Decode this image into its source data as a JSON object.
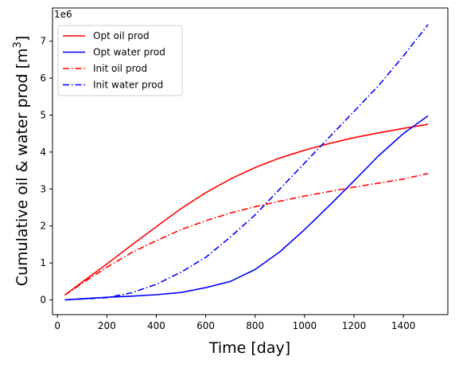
{
  "chart_data": {
    "type": "line",
    "title": "",
    "xlabel": "Time [day]",
    "ylabel_main": "Cumulative oil & water prod [m",
    "ylabel_sup": "3",
    "ylabel_end": "]",
    "y_offset_text": "1e6",
    "xlim": [
      -20,
      1580
    ],
    "ylim": [
      -0.4,
      7.9
    ],
    "x_ticks": [
      0,
      200,
      400,
      600,
      800,
      1000,
      1200,
      1400
    ],
    "y_ticks": [
      0,
      1,
      2,
      3,
      4,
      5,
      6,
      7
    ],
    "grid": false,
    "legend_position": "top-left",
    "x": [
      30,
      100,
      200,
      300,
      400,
      500,
      600,
      700,
      800,
      900,
      1000,
      1100,
      1200,
      1300,
      1400,
      1500
    ],
    "series": [
      {
        "name": "Opt oil prod",
        "color": "#ff0000",
        "dash": "solid",
        "values": [
          0.13,
          0.48,
          0.97,
          1.48,
          1.98,
          2.47,
          2.9,
          3.27,
          3.58,
          3.84,
          4.05,
          4.23,
          4.39,
          4.52,
          4.64,
          4.75
        ]
      },
      {
        "name": "Opt water prod",
        "color": "#0000ff",
        "dash": "solid",
        "values": [
          0.0,
          0.03,
          0.07,
          0.1,
          0.14,
          0.2,
          0.33,
          0.5,
          0.82,
          1.3,
          1.9,
          2.55,
          3.22,
          3.9,
          4.5,
          4.98
        ]
      },
      {
        "name": "Init oil prod",
        "color": "#ff0000",
        "dash": "dashdot",
        "values": [
          0.13,
          0.45,
          0.88,
          1.28,
          1.6,
          1.9,
          2.14,
          2.35,
          2.52,
          2.67,
          2.81,
          2.93,
          3.05,
          3.16,
          3.27,
          3.42
        ]
      },
      {
        "name": "Init water prod",
        "color": "#0000ff",
        "dash": "dashdot",
        "values": [
          0.0,
          0.02,
          0.06,
          0.19,
          0.42,
          0.75,
          1.15,
          1.7,
          2.3,
          3.0,
          3.7,
          4.4,
          5.1,
          5.8,
          6.6,
          7.45
        ]
      }
    ]
  }
}
